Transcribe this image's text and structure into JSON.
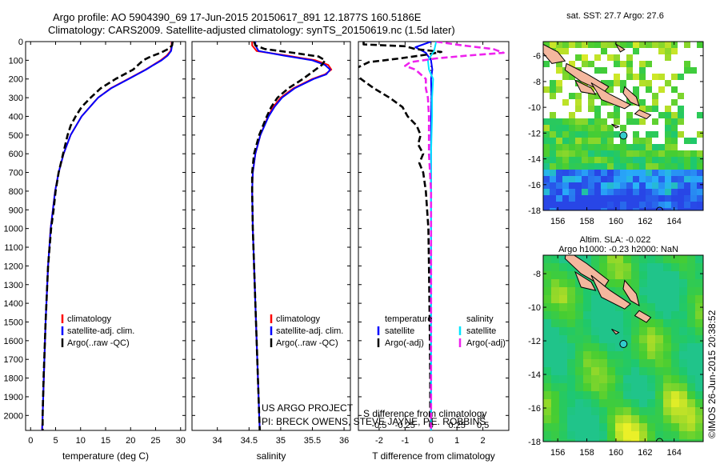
{
  "header": {
    "line1": "Argo profile: AO 5904390_69 17-Jun-2015 20150617_891 12.1877S 160.5186E",
    "line2": "Climatology: CARS2009. Satellite-adjusted climatology: synTS_20150619.nc (1.5d later)"
  },
  "footer": {
    "project": "US ARGO PROJECT",
    "pi": "PI: BRECK OWENS, STEVE JAYNE, P.E. ROBBINS",
    "stamp": "©IMOS 26-Jun-2015 20:38:52"
  },
  "colors": {
    "climatology": "#ff0000",
    "satellite": "#0000ff",
    "argo": "#000000",
    "satellite_s": "#00e5ff",
    "argo_s": "#ee22ee",
    "land": "#f4b79e",
    "float_marker": "#33cccc"
  },
  "chart_data": [
    {
      "type": "line",
      "xlabel": "temperature (deg C)",
      "xlim": [
        -1,
        31
      ],
      "xticks": [
        0,
        5,
        10,
        15,
        20,
        25,
        30
      ],
      "ylim": [
        2080,
        0
      ],
      "yticks": [
        0,
        100,
        200,
        300,
        400,
        500,
        600,
        700,
        800,
        900,
        1000,
        1100,
        1200,
        1300,
        1400,
        1500,
        1600,
        1700,
        1800,
        1900,
        2000
      ],
      "depth": [
        0,
        20,
        50,
        75,
        100,
        125,
        150,
        200,
        250,
        300,
        400,
        500,
        600,
        700,
        800,
        1000,
        1200,
        1500,
        2000,
        2080
      ],
      "legend": {
        "position": "bottom-left",
        "items": [
          "climatology",
          "satellite-adj. clim.",
          "Argo(..raw -QC)"
        ]
      },
      "series": [
        {
          "name": "climatology",
          "color_key": "climatology",
          "dash": "solid",
          "values": [
            28.2,
            28.2,
            28.0,
            27.2,
            26.0,
            24.5,
            23.0,
            19.5,
            16.0,
            13.5,
            10.2,
            8.0,
            6.6,
            5.6,
            4.9,
            4.0,
            3.5,
            3.0,
            2.4,
            2.3
          ]
        },
        {
          "name": "satellite-adj. clim.",
          "color_key": "satellite",
          "dash": "solid",
          "values": [
            28.3,
            28.3,
            28.1,
            27.4,
            26.2,
            24.6,
            23.1,
            19.6,
            16.1,
            13.5,
            10.2,
            8.0,
            6.6,
            5.6,
            4.9,
            4.0,
            3.5,
            3.0,
            2.4,
            2.3
          ]
        },
        {
          "name": "Argo(..raw -QC)",
          "color_key": "argo",
          "dash": "dash",
          "depth": [
            0,
            20,
            40,
            60,
            80,
            100,
            150,
            200,
            250,
            300,
            350,
            400,
            450,
            500,
            600,
            700,
            800,
            900,
            1000,
            1200,
            1500,
            1800,
            1900,
            2000,
            2080
          ],
          "values": [
            28.4,
            28.3,
            27.5,
            26.0,
            24.0,
            22.5,
            20.5,
            17.0,
            14.0,
            12.0,
            10.2,
            9.0,
            8.0,
            7.4,
            6.5,
            5.6,
            5.0,
            4.6,
            4.1,
            3.5,
            3.0,
            2.6,
            2.5,
            2.4,
            2.4
          ]
        }
      ]
    },
    {
      "type": "line",
      "xlabel": "salinity",
      "xlim": [
        33.6,
        36.1
      ],
      "xticks": [
        34,
        34.5,
        35,
        35.5,
        36
      ],
      "ylim": [
        2080,
        0
      ],
      "depth": [
        0,
        20,
        50,
        75,
        100,
        125,
        150,
        175,
        200,
        250,
        300,
        350,
        400,
        500,
        600,
        700,
        800,
        1000,
        1200,
        1500,
        2000,
        2080
      ],
      "legend": {
        "position": "bottom-left",
        "items": [
          "climatology",
          "satellite-adj. clim.",
          "Argo(..raw -QC)"
        ]
      },
      "series": [
        {
          "name": "climatology",
          "color_key": "climatology",
          "dash": "solid",
          "values": [
            34.55,
            34.55,
            34.62,
            35.1,
            35.55,
            35.75,
            35.8,
            35.7,
            35.5,
            35.2,
            35.0,
            34.88,
            34.8,
            34.68,
            34.6,
            34.56,
            34.55,
            34.56,
            34.58,
            34.61,
            34.66,
            34.67
          ]
        },
        {
          "name": "satellite-adj. clim.",
          "color_key": "satellite",
          "dash": "solid",
          "values": [
            34.6,
            34.6,
            34.65,
            35.05,
            35.5,
            35.7,
            35.78,
            35.72,
            35.52,
            35.22,
            35.02,
            34.9,
            34.81,
            34.68,
            34.6,
            34.56,
            34.55,
            34.56,
            34.58,
            34.61,
            34.66,
            34.67
          ]
        },
        {
          "name": "Argo(..raw -QC)",
          "color_key": "argo",
          "dash": "dash",
          "depth": [
            0,
            20,
            40,
            60,
            80,
            100,
            125,
            150,
            200,
            250,
            300,
            350,
            400,
            500,
            600,
            700,
            800,
            1000,
            1200,
            1500,
            2000,
            2080
          ],
          "values": [
            34.58,
            34.6,
            34.75,
            35.2,
            35.6,
            35.7,
            35.65,
            35.55,
            35.35,
            35.12,
            34.95,
            34.85,
            34.78,
            34.66,
            34.58,
            34.55,
            34.55,
            34.56,
            34.58,
            34.61,
            34.66,
            34.67
          ]
        }
      ]
    },
    {
      "type": "line",
      "xlabel": "T difference from climatology",
      "top_axis_label": "S difference from climatology",
      "xlim": [
        -2.8,
        3.0
      ],
      "xticks": [
        -2,
        -1,
        0,
        1,
        2
      ],
      "s_xlim": [
        -0.7,
        0.75
      ],
      "s_xticks": [
        -0.5,
        -0.25,
        0,
        0.25,
        0.5
      ],
      "s_xtick_labels": [
        "-0.5",
        "-0.25",
        "0",
        "0.25",
        "0.5"
      ],
      "ylim": [
        2080,
        0
      ],
      "legend": {
        "position": "top-center",
        "items": [
          "temperature",
          "satellite",
          "Argo(-adj)",
          "salinity",
          "satellite",
          "Argo(-adj)"
        ]
      },
      "series": [
        {
          "name": "temperature satellite",
          "color_key": "satellite",
          "dash": "solid",
          "axis": "T",
          "depth": [
            0,
            30,
            60,
            100,
            150,
            200,
            300,
            400,
            500,
            700,
            1000,
            1500,
            2080
          ],
          "values": [
            0.0,
            -0.6,
            -0.2,
            0.0,
            0.05,
            0.0,
            0.02,
            0.0,
            0.0,
            0.0,
            0.0,
            0.0,
            0.0
          ]
        },
        {
          "name": "temperature Argo(-adj)",
          "color_key": "argo",
          "dash": "dash",
          "axis": "T",
          "depth": [
            0,
            15,
            25,
            40,
            55,
            70,
            90,
            110,
            150,
            200,
            250,
            300,
            350,
            400,
            450,
            500,
            550,
            600,
            650,
            700,
            800,
            900,
            1000,
            1200,
            1500,
            1800,
            2080
          ],
          "values": [
            -2.6,
            -2.6,
            -1.0,
            -0.6,
            0.4,
            -0.2,
            -1.2,
            -2.4,
            -3.0,
            -2.7,
            -2.2,
            -1.6,
            -1.1,
            -0.9,
            -0.55,
            -0.4,
            -0.5,
            -0.3,
            -0.45,
            -0.3,
            -0.2,
            -0.15,
            -0.1,
            -0.08,
            -0.05,
            -0.03,
            -0.03
          ]
        },
        {
          "name": "salinity satellite",
          "color_key": "satellite_s",
          "dash": "solid",
          "axis": "S",
          "depth": [
            0,
            50,
            100,
            150,
            200,
            300,
            400,
            600,
            800,
            1000,
            1500,
            2080
          ],
          "values": [
            0.05,
            0.03,
            -0.03,
            -0.02,
            0.02,
            0.01,
            0.01,
            0.0,
            0.0,
            0.0,
            0.0,
            0.0
          ]
        },
        {
          "name": "salinity Argo(-adj)",
          "color_key": "argo_s",
          "dash": "dash",
          "axis": "S",
          "depth": [
            0,
            20,
            40,
            60,
            75,
            90,
            110,
            130,
            150,
            175,
            200,
            250,
            300,
            400,
            600,
            800,
            1000,
            1500,
            2080
          ],
          "values": [
            0.05,
            0.3,
            0.6,
            0.7,
            0.35,
            0.05,
            -0.2,
            -0.25,
            -0.15,
            -0.1,
            -0.05,
            -0.05,
            -0.03,
            -0.02,
            -0.02,
            0.0,
            0.0,
            0.0,
            0.0
          ]
        }
      ]
    },
    {
      "type": "heatmap",
      "title": "sat. SST: 27.7 Argo: 27.6",
      "xlim": [
        155,
        166
      ],
      "ylim": [
        -18,
        -4.9
      ],
      "xticks": [
        156,
        158,
        160,
        162,
        164
      ],
      "yticks": [
        -6,
        -8,
        -10,
        -12,
        -14,
        -16,
        -18
      ],
      "float_position": [
        160.5186,
        -12.1877
      ]
    },
    {
      "type": "heatmap",
      "title": "Altim. SLA: -0.022",
      "subtitle": "Argo h1000: -0.23 h2000: NaN",
      "xlim": [
        155,
        166
      ],
      "ylim": [
        -18,
        -6.9
      ],
      "xticks": [
        156,
        158,
        160,
        162,
        164
      ],
      "yticks": [
        -8,
        -10,
        -12,
        -14,
        -16,
        -18
      ],
      "float_position": [
        160.5186,
        -12.1877
      ]
    }
  ]
}
